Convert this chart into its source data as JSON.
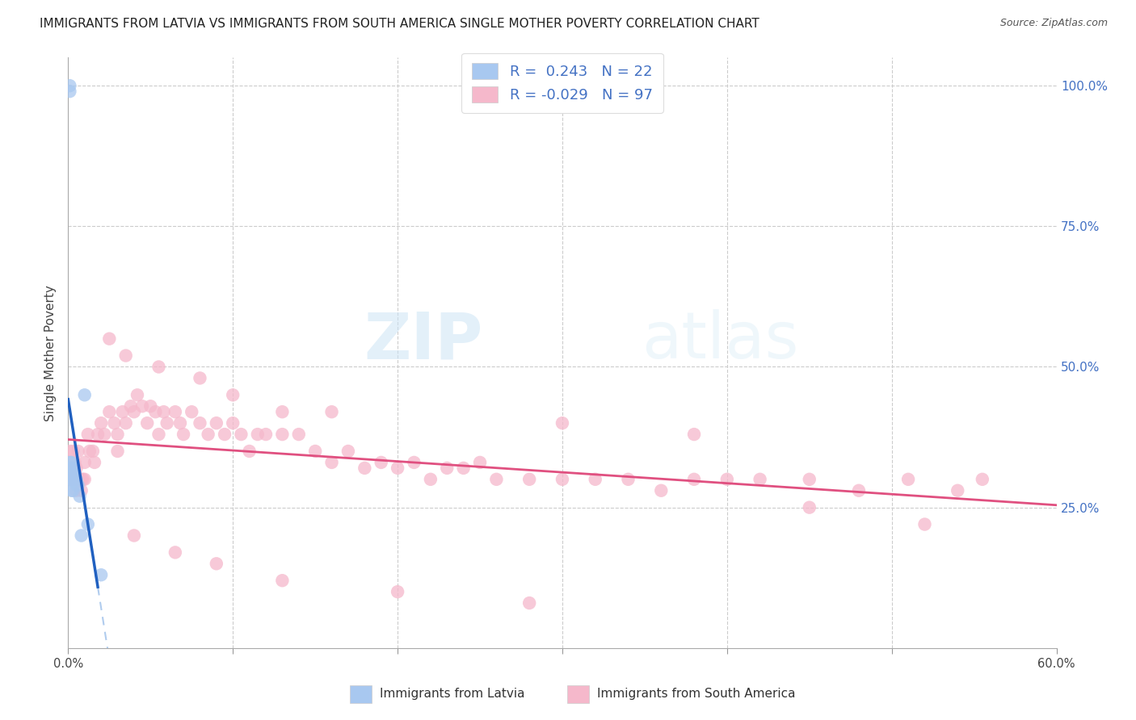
{
  "title": "IMMIGRANTS FROM LATVIA VS IMMIGRANTS FROM SOUTH AMERICA SINGLE MOTHER POVERTY CORRELATION CHART",
  "source": "Source: ZipAtlas.com",
  "ylabel": "Single Mother Poverty",
  "ytick_labels": [
    "100.0%",
    "75.0%",
    "50.0%",
    "25.0%"
  ],
  "ytick_positions": [
    1.0,
    0.75,
    0.5,
    0.25
  ],
  "legend_r1": "0.243",
  "legend_n1": "22",
  "legend_r2": "-0.029",
  "legend_n2": "97",
  "watermark": "ZIPatlas",
  "legend_label1": "Immigrants from Latvia",
  "legend_label2": "Immigrants from South America",
  "blue_color": "#a8c8f0",
  "pink_color": "#f5b8cb",
  "blue_line_color": "#2060c0",
  "pink_line_color": "#e05080",
  "blue_dash_color": "#b0ccee",
  "legend_text_color": "#4472c4",
  "title_color": "#222222",
  "source_color": "#555555",
  "grid_color": "#cccccc",
  "xlim": [
    0.0,
    0.6
  ],
  "ylim": [
    0.0,
    1.05
  ],
  "xtick_positions": [
    0.0,
    0.1,
    0.2,
    0.3,
    0.4,
    0.5,
    0.6
  ],
  "blue_x": [
    0.001,
    0.001,
    0.001,
    0.001,
    0.001,
    0.002,
    0.002,
    0.002,
    0.002,
    0.003,
    0.003,
    0.003,
    0.004,
    0.004,
    0.005,
    0.005,
    0.006,
    0.007,
    0.008,
    0.01,
    0.012,
    0.02
  ],
  "blue_y": [
    1.0,
    0.99,
    0.33,
    0.32,
    0.3,
    0.33,
    0.31,
    0.3,
    0.28,
    0.32,
    0.3,
    0.28,
    0.31,
    0.3,
    0.3,
    0.29,
    0.29,
    0.27,
    0.2,
    0.45,
    0.22,
    0.13
  ],
  "pink_x": [
    0.001,
    0.002,
    0.002,
    0.003,
    0.003,
    0.004,
    0.004,
    0.005,
    0.005,
    0.006,
    0.006,
    0.007,
    0.008,
    0.008,
    0.009,
    0.01,
    0.01,
    0.012,
    0.013,
    0.015,
    0.016,
    0.018,
    0.02,
    0.022,
    0.025,
    0.028,
    0.03,
    0.03,
    0.033,
    0.035,
    0.038,
    0.04,
    0.042,
    0.045,
    0.048,
    0.05,
    0.053,
    0.055,
    0.058,
    0.06,
    0.065,
    0.068,
    0.07,
    0.075,
    0.08,
    0.085,
    0.09,
    0.095,
    0.1,
    0.105,
    0.11,
    0.115,
    0.12,
    0.13,
    0.14,
    0.15,
    0.16,
    0.17,
    0.18,
    0.19,
    0.2,
    0.21,
    0.22,
    0.23,
    0.24,
    0.25,
    0.26,
    0.28,
    0.3,
    0.32,
    0.34,
    0.36,
    0.38,
    0.4,
    0.42,
    0.45,
    0.48,
    0.51,
    0.54,
    0.555,
    0.025,
    0.035,
    0.055,
    0.08,
    0.1,
    0.13,
    0.16,
    0.3,
    0.38,
    0.45,
    0.52,
    0.04,
    0.065,
    0.09,
    0.13,
    0.2,
    0.28
  ],
  "pink_y": [
    0.35,
    0.32,
    0.3,
    0.35,
    0.3,
    0.33,
    0.3,
    0.32,
    0.28,
    0.35,
    0.3,
    0.3,
    0.3,
    0.28,
    0.3,
    0.33,
    0.3,
    0.38,
    0.35,
    0.35,
    0.33,
    0.38,
    0.4,
    0.38,
    0.42,
    0.4,
    0.38,
    0.35,
    0.42,
    0.4,
    0.43,
    0.42,
    0.45,
    0.43,
    0.4,
    0.43,
    0.42,
    0.38,
    0.42,
    0.4,
    0.42,
    0.4,
    0.38,
    0.42,
    0.4,
    0.38,
    0.4,
    0.38,
    0.4,
    0.38,
    0.35,
    0.38,
    0.38,
    0.38,
    0.38,
    0.35,
    0.33,
    0.35,
    0.32,
    0.33,
    0.32,
    0.33,
    0.3,
    0.32,
    0.32,
    0.33,
    0.3,
    0.3,
    0.3,
    0.3,
    0.3,
    0.28,
    0.3,
    0.3,
    0.3,
    0.3,
    0.28,
    0.3,
    0.28,
    0.3,
    0.55,
    0.52,
    0.5,
    0.48,
    0.45,
    0.42,
    0.42,
    0.4,
    0.38,
    0.25,
    0.22,
    0.2,
    0.17,
    0.15,
    0.12,
    0.1,
    0.08
  ]
}
